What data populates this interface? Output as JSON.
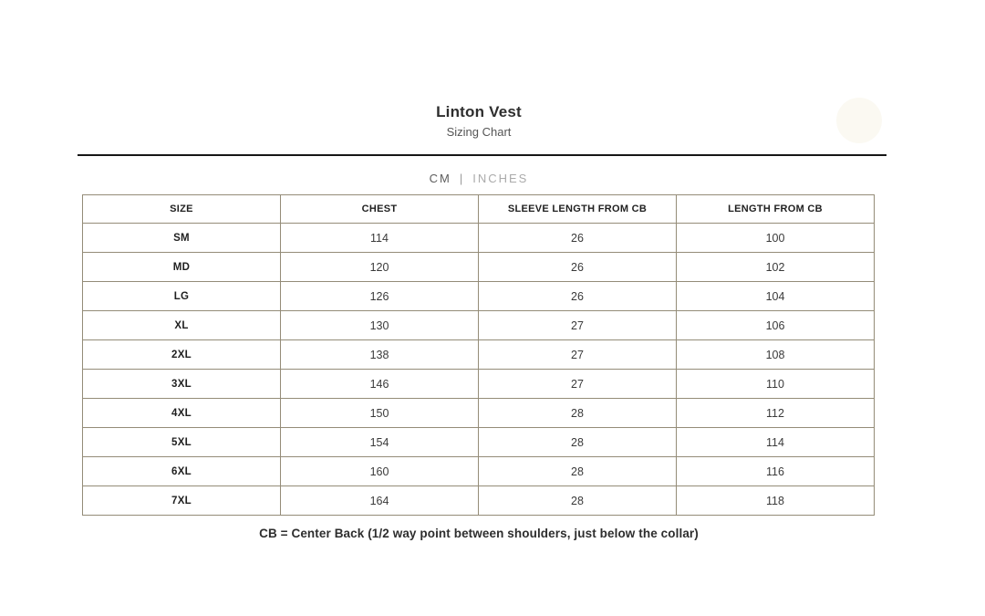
{
  "header": {
    "title": "Linton Vest",
    "subtitle": "Sizing Chart"
  },
  "unit_toggle": {
    "cm_label": "CM",
    "separator": "|",
    "inches_label": "INCHES",
    "selected": "CM"
  },
  "table": {
    "columns": [
      "SIZE",
      "CHEST",
      "SLEEVE LENGTH FROM CB",
      "LENGTH FROM CB"
    ],
    "rows": [
      {
        "size": "SM",
        "chest": "114",
        "sleeve_length_from_cb": "26",
        "length_from_cb": "100"
      },
      {
        "size": "MD",
        "chest": "120",
        "sleeve_length_from_cb": "26",
        "length_from_cb": "102"
      },
      {
        "size": "LG",
        "chest": "126",
        "sleeve_length_from_cb": "26",
        "length_from_cb": "104"
      },
      {
        "size": "XL",
        "chest": "130",
        "sleeve_length_from_cb": "27",
        "length_from_cb": "106"
      },
      {
        "size": "2XL",
        "chest": "138",
        "sleeve_length_from_cb": "27",
        "length_from_cb": "108"
      },
      {
        "size": "3XL",
        "chest": "146",
        "sleeve_length_from_cb": "27",
        "length_from_cb": "110"
      },
      {
        "size": "4XL",
        "chest": "150",
        "sleeve_length_from_cb": "28",
        "length_from_cb": "112"
      },
      {
        "size": "5XL",
        "chest": "154",
        "sleeve_length_from_cb": "28",
        "length_from_cb": "114"
      },
      {
        "size": "6XL",
        "chest": "160",
        "sleeve_length_from_cb": "28",
        "length_from_cb": "116"
      },
      {
        "size": "7XL",
        "chest": "164",
        "sleeve_length_from_cb": "28",
        "length_from_cb": "118"
      }
    ]
  },
  "footnote": "CB = Center Back (1/2 way point between shoulders, just below the collar)",
  "colors": {
    "table_border": "#948c78",
    "rule": "#161616",
    "title_text": "#2e2e2e",
    "unit_selected": "#5d5d5d",
    "unit_unselected": "#ababab"
  }
}
